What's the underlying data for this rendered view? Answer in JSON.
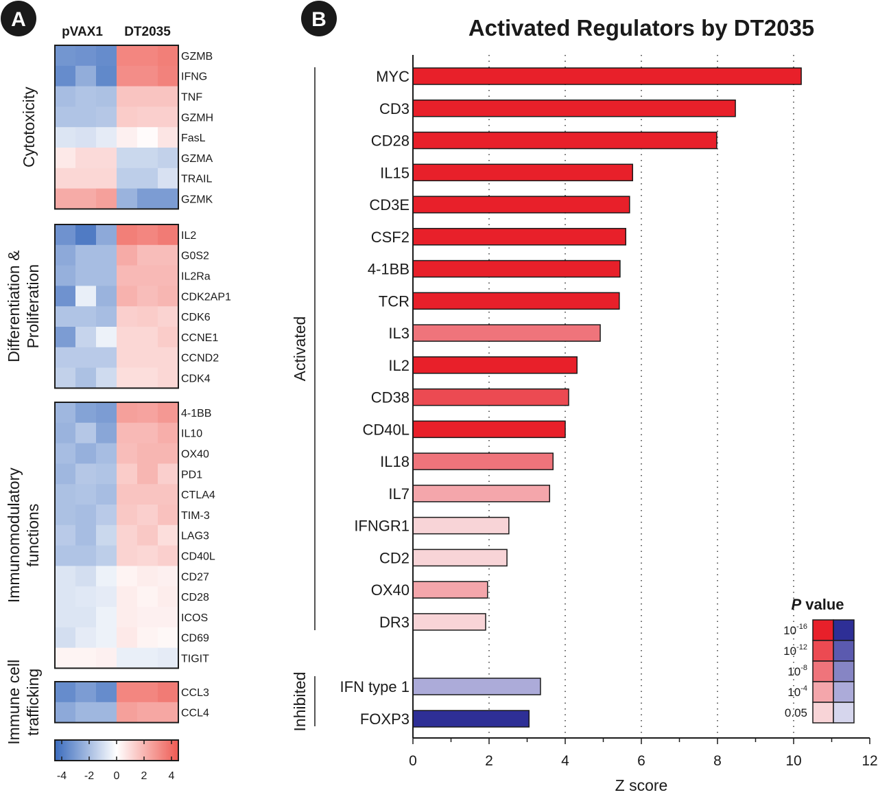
{
  "panel_labels": {
    "a": "A",
    "b": "B"
  },
  "chart_data": [
    {
      "type": "heatmap",
      "columns_groups": [
        "pVAX1",
        "DT2035"
      ],
      "columns_per_group": 3,
      "colorbar": {
        "ticks": [
          -4,
          -2,
          0,
          2,
          4
        ],
        "range": [
          -4.5,
          4.5
        ],
        "low_color": "#3a6bbd",
        "mid_color": "#ffffff",
        "high_color": "#ee5a52"
      },
      "groups": [
        {
          "label": "Cytotoxicity",
          "rows": [
            {
              "gene": "GZMB",
              "values": [
                -3.2,
                -3.3,
                -3.5,
                3.3,
                3.3,
                3.5
              ]
            },
            {
              "gene": "IFNG",
              "values": [
                -3.5,
                -2.5,
                -3.6,
                3.1,
                3.1,
                3.4
              ]
            },
            {
              "gene": "TNF",
              "values": [
                -2.0,
                -1.8,
                -1.9,
                1.6,
                1.6,
                1.6
              ]
            },
            {
              "gene": "GZMH",
              "values": [
                -1.8,
                -1.8,
                -1.7,
                1.4,
                1.3,
                1.3
              ]
            },
            {
              "gene": "FasL",
              "values": [
                -0.8,
                -0.9,
                -0.6,
                0.4,
                0.1,
                0.7
              ]
            },
            {
              "gene": "GZMA",
              "values": [
                0.6,
                1.0,
                1.0,
                -1.2,
                -1.2,
                -1.4
              ]
            },
            {
              "gene": "TRAIL",
              "values": [
                1.1,
                1.1,
                1.1,
                -1.5,
                -1.5,
                -0.9
              ]
            },
            {
              "gene": "GZMK",
              "values": [
                2.3,
                2.3,
                2.6,
                -2.3,
                -3.0,
                -3.0
              ]
            }
          ]
        },
        {
          "label": "Differentiation & Proliferation",
          "label_lines": [
            "Differentiation &",
            "Proliferation"
          ],
          "rows": [
            {
              "gene": "IL2",
              "values": [
                -3.3,
                -4.0,
                -2.6,
                3.5,
                3.3,
                3.6
              ]
            },
            {
              "gene": "G0S2",
              "values": [
                -2.6,
                -2.0,
                -2.0,
                2.3,
                1.8,
                1.8
              ]
            },
            {
              "gene": "IL2Ra",
              "values": [
                -2.4,
                -2.0,
                -2.0,
                1.9,
                1.9,
                1.9
              ]
            },
            {
              "gene": "CDK2AP1",
              "values": [
                -3.3,
                -0.5,
                -2.3,
                2.1,
                1.8,
                2.0
              ]
            },
            {
              "gene": "CDK6",
              "values": [
                -1.8,
                -1.8,
                -2.0,
                1.3,
                1.4,
                1.2
              ]
            },
            {
              "gene": "CCNE1",
              "values": [
                -3.0,
                -1.3,
                -0.4,
                1.1,
                1.1,
                1.4
              ]
            },
            {
              "gene": "CCND2",
              "values": [
                -1.6,
                -1.6,
                -1.6,
                1.1,
                1.1,
                1.1
              ]
            },
            {
              "gene": "CDK4",
              "values": [
                -1.4,
                -1.9,
                -1.1,
                0.9,
                0.9,
                1.1
              ]
            }
          ]
        },
        {
          "label": "Immunomodulatory functions",
          "label_lines": [
            "Immunomodulatory",
            "functions"
          ],
          "rows": [
            {
              "gene": "4-1BB",
              "values": [
                -2.2,
                -2.8,
                -3.0,
                2.6,
                2.5,
                2.8
              ]
            },
            {
              "gene": "IL10",
              "values": [
                -2.3,
                -1.7,
                -2.7,
                1.9,
                1.9,
                2.2
              ]
            },
            {
              "gene": "OX40",
              "values": [
                -2.0,
                -2.4,
                -2.0,
                1.8,
                2.0,
                2.0
              ]
            },
            {
              "gene": "PD1",
              "values": [
                -2.2,
                -1.7,
                -1.8,
                1.4,
                2.0,
                1.3
              ]
            },
            {
              "gene": "CTLA4",
              "values": [
                -1.9,
                -1.8,
                -2.0,
                1.6,
                1.6,
                1.6
              ]
            },
            {
              "gene": "TIM-3",
              "values": [
                -1.9,
                -2.0,
                -1.6,
                1.5,
                1.3,
                1.7
              ]
            },
            {
              "gene": "LAG3",
              "values": [
                -1.6,
                -2.0,
                -1.2,
                1.2,
                1.5,
                0.9
              ]
            },
            {
              "gene": "CD40L",
              "values": [
                -1.8,
                -1.8,
                -1.5,
                1.2,
                1.1,
                1.3
              ]
            },
            {
              "gene": "CD27",
              "values": [
                -0.8,
                -1.0,
                -0.4,
                0.3,
                0.5,
                0.4
              ]
            },
            {
              "gene": "CD28",
              "values": [
                -0.8,
                -0.7,
                -0.6,
                0.5,
                0.3,
                0.5
              ]
            },
            {
              "gene": "ICOS",
              "values": [
                -0.8,
                -0.8,
                -0.4,
                0.5,
                0.4,
                0.4
              ]
            },
            {
              "gene": "CD69",
              "values": [
                -1.0,
                -0.6,
                -0.4,
                0.6,
                0.3,
                0.2
              ]
            },
            {
              "gene": "TIGIT",
              "values": [
                0.3,
                0.3,
                0.4,
                -0.5,
                -0.5,
                -0.6
              ]
            }
          ]
        },
        {
          "label": "Immune cell trafficking",
          "label_lines": [
            "Immune cell",
            "trafficking"
          ],
          "rows": [
            {
              "gene": "CCL3",
              "values": [
                -3.5,
                -3.0,
                -3.5,
                3.3,
                3.3,
                3.6
              ]
            },
            {
              "gene": "CCL4",
              "values": [
                -2.6,
                -2.2,
                -2.2,
                2.6,
                2.4,
                2.4
              ]
            }
          ]
        }
      ]
    },
    {
      "type": "bar",
      "orientation": "horizontal",
      "title": "Activated Regulators by DT2035",
      "xlabel": "Z score",
      "xlim": [
        0,
        12
      ],
      "xticks": [
        0,
        2,
        4,
        6,
        8,
        10,
        12
      ],
      "grid": "dotted vertical at 2, 4, 6, 8, 10",
      "groups": [
        {
          "label": "Activated",
          "bars": [
            {
              "name": "MYC",
              "value": 10.2,
              "p": "10-16"
            },
            {
              "name": "CD3",
              "value": 8.47,
              "p": "10-16"
            },
            {
              "name": "CD28",
              "value": 7.98,
              "p": "10-16"
            },
            {
              "name": "IL15",
              "value": 5.77,
              "p": "10-16"
            },
            {
              "name": "CD3E",
              "value": 5.69,
              "p": "10-16"
            },
            {
              "name": "CSF2",
              "value": 5.59,
              "p": "10-16"
            },
            {
              "name": "4-1BB",
              "value": 5.44,
              "p": "10-16"
            },
            {
              "name": "TCR",
              "value": 5.42,
              "p": "10-16"
            },
            {
              "name": "IL3",
              "value": 4.92,
              "p": "10-8"
            },
            {
              "name": "IL2",
              "value": 4.31,
              "p": "10-16"
            },
            {
              "name": "CD38",
              "value": 4.09,
              "p": "10-12"
            },
            {
              "name": "CD40L",
              "value": 4.0,
              "p": "10-16"
            },
            {
              "name": "IL18",
              "value": 3.68,
              "p": "10-8"
            },
            {
              "name": "IL7",
              "value": 3.59,
              "p": "10-4"
            },
            {
              "name": "IFNGR1",
              "value": 2.52,
              "p": "0.05"
            },
            {
              "name": "CD2",
              "value": 2.47,
              "p": "0.05"
            },
            {
              "name": "OX40",
              "value": 1.96,
              "p": "10-4"
            },
            {
              "name": "DR3",
              "value": 1.91,
              "p": "0.05"
            }
          ]
        },
        {
          "label": "Inhibited",
          "bars": [
            {
              "name": "IFN type 1",
              "value": 3.35,
              "p": "10-4"
            },
            {
              "name": "FOXP3",
              "value": 3.05,
              "p": "10-16"
            }
          ]
        }
      ],
      "legend": {
        "title_italic": "P",
        "title_rest": " value",
        "placement": "bottom-right",
        "levels": [
          {
            "key": "10-16",
            "base": "10",
            "exp": "-16",
            "activated": "#e8202a",
            "inhibited": "#2e2f96"
          },
          {
            "key": "10-12",
            "base": "10",
            "exp": "-12",
            "activated": "#ec4a52",
            "inhibited": "#5b5aaf"
          },
          {
            "key": "10-8",
            "base": "10",
            "exp": "-8",
            "activated": "#ef747b",
            "inhibited": "#8685c4"
          },
          {
            "key": "10-4",
            "base": "10",
            "exp": "-4",
            "activated": "#f4a6ab",
            "inhibited": "#acabd9"
          },
          {
            "key": "0.05",
            "base": "0.05",
            "exp": "",
            "activated": "#f8d4d7",
            "inhibited": "#d6d6ed"
          }
        ]
      }
    }
  ]
}
